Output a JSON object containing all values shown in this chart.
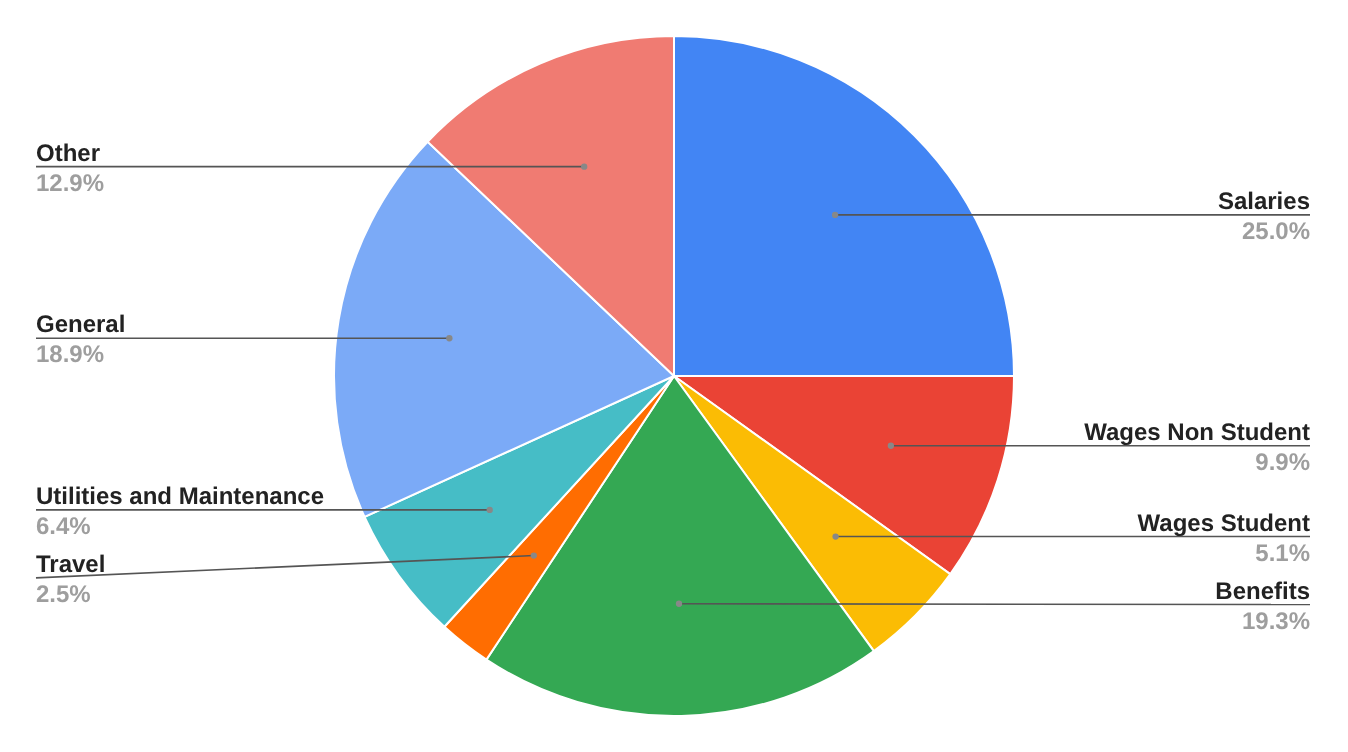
{
  "chart_data": {
    "type": "pie",
    "categories": [
      "Salaries",
      "Wages Non Student",
      "Wages Student",
      "Benefits",
      "Travel",
      "Utilities and Maintenance",
      "General",
      "Other"
    ],
    "values": [
      25.0,
      9.9,
      5.1,
      19.3,
      2.5,
      6.4,
      18.9,
      12.9
    ],
    "value_labels": [
      "25.0%",
      "9.9%",
      "5.1%",
      "19.3%",
      "2.5%",
      "6.4%",
      "18.9%",
      "12.9%"
    ],
    "colors": [
      "#4285f4",
      "#ea4335",
      "#fbbc04",
      "#34a853",
      "#ff6d01",
      "#46bdc6",
      "#7baaf7",
      "#f07b72"
    ]
  }
}
